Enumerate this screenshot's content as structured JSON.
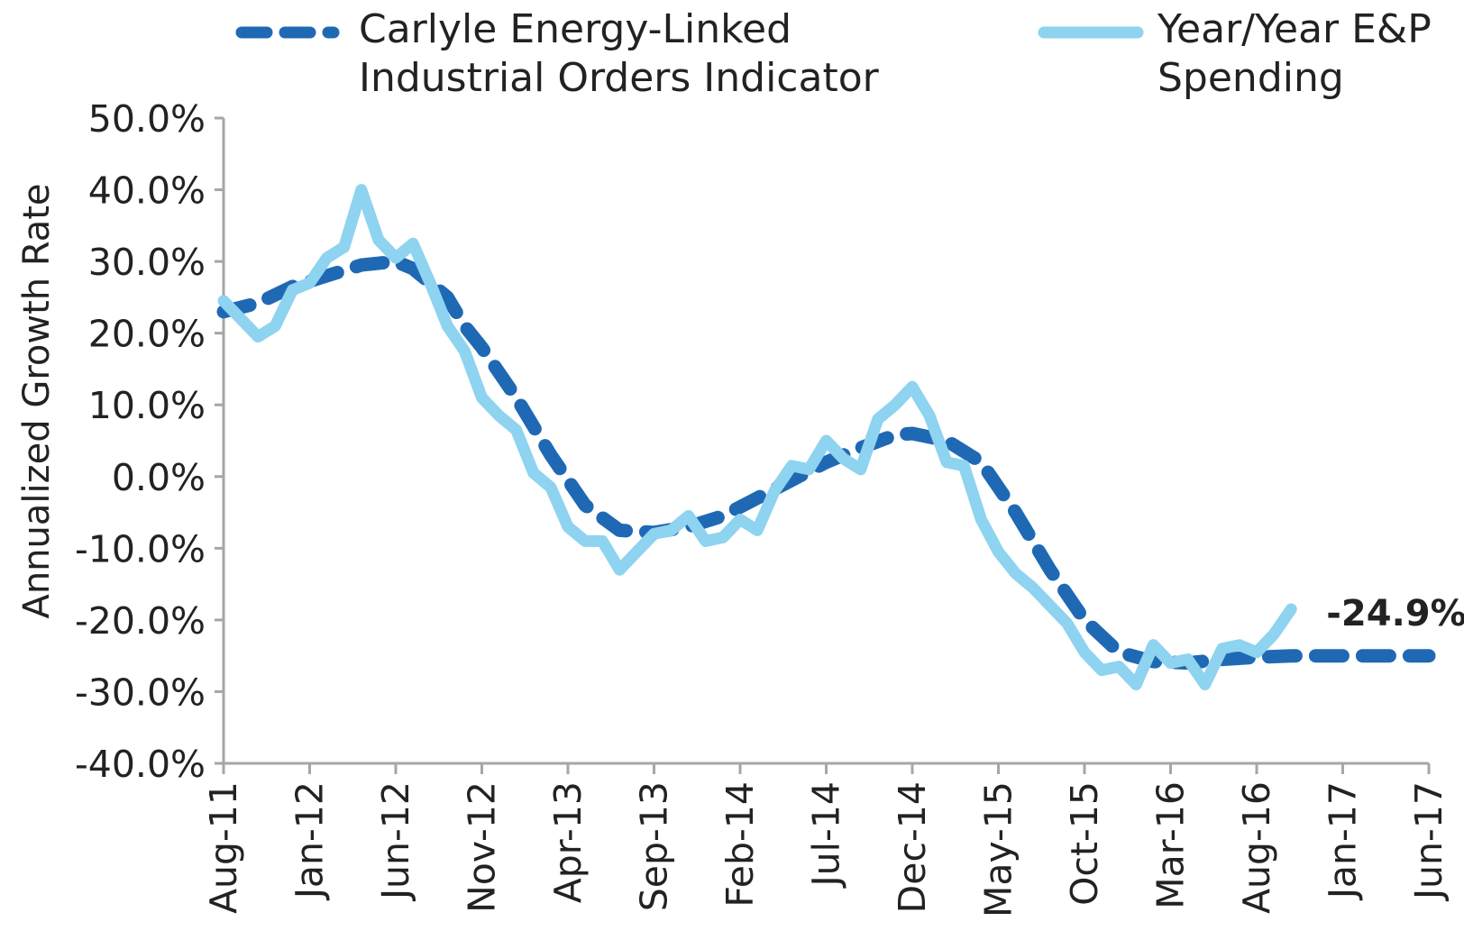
{
  "chart_data": {
    "type": "line",
    "title": "",
    "xlabel": "",
    "ylabel": "Annualized Growth Rate",
    "ylim": [
      -40,
      50
    ],
    "y_ticks": [
      50,
      40,
      30,
      20,
      10,
      0,
      -10,
      -20,
      -30,
      -40
    ],
    "y_tick_labels": [
      "50.0%",
      "40.0%",
      "30.0%",
      "20.0%",
      "10.0%",
      "0.0%",
      "-10.0%",
      "-20.0%",
      "-30.0%",
      "-40.0%"
    ],
    "x_range_months": [
      "Aug-11",
      "Jun-17"
    ],
    "x_tick_labels": [
      "Aug-11",
      "Jan-12",
      "Jun-12",
      "Nov-12",
      "Apr-13",
      "Sep-13",
      "Feb-14",
      "Jul-14",
      "Dec-14",
      "May-15",
      "Oct-15",
      "Mar-16",
      "Aug-16",
      "Jan-17",
      "Jun-17"
    ],
    "grid": false,
    "legend_position": "top",
    "annotations": [
      {
        "text": "-24.9%",
        "x": "Nov-16",
        "y": -19
      }
    ],
    "series": [
      {
        "name": "Carlyle Energy-Linked Industrial Orders Indicator",
        "style": "dashed",
        "color": "#1f69b4",
        "points": [
          [
            "Aug-11",
            23
          ],
          [
            "Oct-11",
            24.2
          ],
          [
            "Dec-11",
            26.5
          ],
          [
            "Feb-12",
            28
          ],
          [
            "Apr-12",
            29.5
          ],
          [
            "Jun-12",
            30
          ],
          [
            "Jul-12",
            29
          ],
          [
            "Sep-12",
            25
          ],
          [
            "Oct-12",
            21
          ],
          [
            "Nov-12",
            18
          ],
          [
            "Jan-13",
            11
          ],
          [
            "Mar-13",
            3
          ],
          [
            "May-13",
            -4
          ],
          [
            "Jul-13",
            -7.5
          ],
          [
            "Sep-13",
            -7.8
          ],
          [
            "Nov-13",
            -7
          ],
          [
            "Jan-14",
            -5.5
          ],
          [
            "Mar-14",
            -3
          ],
          [
            "May-14",
            -0.5
          ],
          [
            "Jul-14",
            2
          ],
          [
            "Sep-14",
            4
          ],
          [
            "Nov-14",
            5.8
          ],
          [
            "Dec-14",
            6
          ],
          [
            "Feb-15",
            5
          ],
          [
            "Apr-15",
            2
          ],
          [
            "Jun-15",
            -5
          ],
          [
            "Aug-15",
            -13
          ],
          [
            "Oct-15",
            -20
          ],
          [
            "Dec-15",
            -24.5
          ],
          [
            "Feb-16",
            -25.8
          ],
          [
            "Apr-16",
            -26
          ],
          [
            "Jun-16",
            -25.5
          ],
          [
            "Aug-16",
            -25.2
          ],
          [
            "Oct-16",
            -25
          ],
          [
            "Dec-16",
            -25
          ],
          [
            "Feb-17",
            -25
          ],
          [
            "Apr-17",
            -25
          ],
          [
            "Jun-17",
            -25
          ]
        ]
      },
      {
        "name": "Year/Year E&P Spending",
        "style": "solid",
        "color": "#8ed3f0",
        "points": [
          [
            "Aug-11",
            24.5
          ],
          [
            "Sep-11",
            22
          ],
          [
            "Oct-11",
            19.5
          ],
          [
            "Nov-11",
            21
          ],
          [
            "Dec-11",
            26
          ],
          [
            "Jan-12",
            27
          ],
          [
            "Feb-12",
            30.5
          ],
          [
            "Mar-12",
            32
          ],
          [
            "Apr-12",
            40
          ],
          [
            "May-12",
            33
          ],
          [
            "Jun-12",
            30.5
          ],
          [
            "Jul-12",
            32.5
          ],
          [
            "Aug-12",
            27
          ],
          [
            "Sep-12",
            21
          ],
          [
            "Oct-12",
            17.5
          ],
          [
            "Nov-12",
            11
          ],
          [
            "Dec-12",
            8.5
          ],
          [
            "Jan-13",
            6.5
          ],
          [
            "Feb-13",
            0.5
          ],
          [
            "Mar-13",
            -1.5
          ],
          [
            "Apr-13",
            -7
          ],
          [
            "May-13",
            -9
          ],
          [
            "Jun-13",
            -9
          ],
          [
            "Jul-13",
            -13
          ],
          [
            "Aug-13",
            -10.5
          ],
          [
            "Sep-13",
            -8
          ],
          [
            "Oct-13",
            -7.5
          ],
          [
            "Nov-13",
            -5.5
          ],
          [
            "Dec-13",
            -9
          ],
          [
            "Jan-14",
            -8.5
          ],
          [
            "Feb-14",
            -6
          ],
          [
            "Mar-14",
            -7.5
          ],
          [
            "Apr-14",
            -2
          ],
          [
            "May-14",
            1.5
          ],
          [
            "Jun-14",
            1
          ],
          [
            "Jul-14",
            5
          ],
          [
            "Aug-14",
            2.5
          ],
          [
            "Sep-14",
            1
          ],
          [
            "Oct-14",
            8
          ],
          [
            "Nov-14",
            10
          ],
          [
            "Dec-14",
            12.5
          ],
          [
            "Jan-15",
            8.5
          ],
          [
            "Feb-15",
            2
          ],
          [
            "Mar-15",
            1.5
          ],
          [
            "Apr-15",
            -6
          ],
          [
            "May-15",
            -10.5
          ],
          [
            "Jun-15",
            -13.5
          ],
          [
            "Jul-15",
            -15.5
          ],
          [
            "Aug-15",
            -18
          ],
          [
            "Sep-15",
            -20.5
          ],
          [
            "Oct-15",
            -24.5
          ],
          [
            "Nov-15",
            -27
          ],
          [
            "Dec-15",
            -26.5
          ],
          [
            "Jan-16",
            -29
          ],
          [
            "Feb-16",
            -23.5
          ],
          [
            "Mar-16",
            -26
          ],
          [
            "Apr-16",
            -25.5
          ],
          [
            "May-16",
            -29
          ],
          [
            "Jun-16",
            -24
          ],
          [
            "Jul-16",
            -23.5
          ],
          [
            "Aug-16",
            -24.5
          ],
          [
            "Sep-16",
            -22
          ],
          [
            "Oct-16",
            -18.5
          ]
        ]
      }
    ]
  }
}
